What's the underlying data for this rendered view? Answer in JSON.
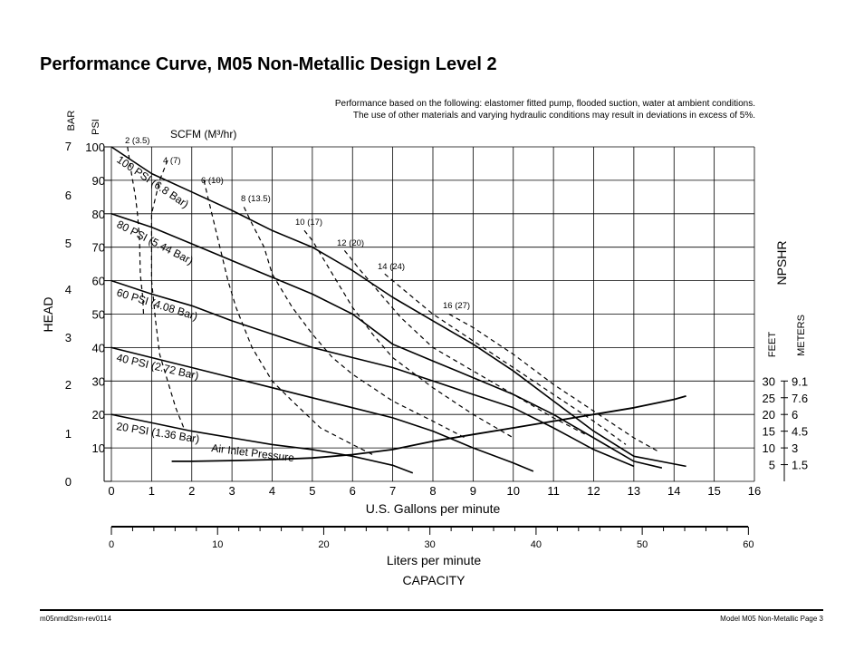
{
  "page": {
    "title": "Performance Curve, M05 Non-Metallic Design Level 2",
    "note_line1": "Performance based on the following: elastomer fitted pump, flooded suction, water at ambient conditions.",
    "note_line2": "The use of other materials and varying hydraulic conditions may result in deviations in excess of 5%.",
    "footer_left": "m05nmdl2sm-rev0114",
    "footer_right": "Model M05 Non-Metallic Page 3"
  },
  "chart_data": {
    "type": "line",
    "title": "",
    "x": {
      "label": "U.S. Gallons per minute",
      "range": [
        0,
        16
      ],
      "ticks": [
        0,
        1,
        2,
        3,
        4,
        5,
        6,
        7,
        8,
        9,
        10,
        11,
        12,
        13,
        14,
        15,
        16
      ]
    },
    "x2": {
      "label": "Liters per minute",
      "caption": "CAPACITY",
      "range": [
        0,
        60
      ],
      "ticks": [
        0,
        10,
        20,
        30,
        40,
        50,
        60
      ],
      "minor_step": 2
    },
    "y": {
      "label": "HEAD",
      "unit_label": "PSI",
      "range": [
        0,
        100
      ],
      "ticks": [
        0,
        10,
        20,
        30,
        40,
        50,
        60,
        70,
        80,
        90,
        100
      ]
    },
    "y_bar": {
      "unit_label": "BAR",
      "ticks": [
        0,
        1,
        2,
        3,
        4,
        5,
        6,
        7
      ]
    },
    "npshr": {
      "label": "NPSHR",
      "feet_label": "FEET",
      "meters_label": "METERS",
      "feet_ticks": [
        "5",
        "10",
        "15",
        "20",
        "25",
        "30"
      ],
      "meters_ticks": [
        "1.5",
        "3",
        "4.5",
        "6",
        "7.6",
        "9.1"
      ]
    },
    "grid": true,
    "air_inlet_label": "Air Inlet Pressure",
    "scfm_label": "SCFM (M³/hr)",
    "pressure_curves": [
      {
        "name": "100 PSI (6.8 Bar)",
        "points": [
          [
            0,
            100
          ],
          [
            1,
            92
          ],
          [
            2,
            86.5
          ],
          [
            3,
            81
          ],
          [
            4,
            75
          ],
          [
            5,
            70
          ],
          [
            6,
            63
          ],
          [
            7,
            55
          ],
          [
            8,
            48
          ],
          [
            9,
            41
          ],
          [
            10,
            33
          ],
          [
            11,
            24
          ],
          [
            12,
            15
          ],
          [
            13,
            7.5
          ],
          [
            14.3,
            4.5
          ]
        ]
      },
      {
        "name": "80 PSI (5.44 Bar)",
        "points": [
          [
            0,
            80
          ],
          [
            1,
            76
          ],
          [
            2,
            71
          ],
          [
            3,
            66
          ],
          [
            4,
            61
          ],
          [
            5,
            56
          ],
          [
            6,
            50
          ],
          [
            7,
            41
          ],
          [
            8,
            36
          ],
          [
            9,
            31
          ],
          [
            10,
            26
          ],
          [
            11,
            20
          ],
          [
            12,
            13
          ],
          [
            13,
            6
          ],
          [
            13.7,
            4
          ]
        ]
      },
      {
        "name": "60 PSI (4.08 Bar)",
        "points": [
          [
            0,
            60
          ],
          [
            1,
            56
          ],
          [
            2,
            52.5
          ],
          [
            3,
            48
          ],
          [
            4,
            44
          ],
          [
            5,
            40
          ],
          [
            6,
            37
          ],
          [
            7,
            34
          ],
          [
            8,
            30
          ],
          [
            9,
            26
          ],
          [
            10,
            22
          ],
          [
            11,
            16
          ],
          [
            12,
            9.5
          ],
          [
            13,
            4.5
          ]
        ]
      },
      {
        "name": "40 PSI (2.72 Bar)",
        "points": [
          [
            0,
            40
          ],
          [
            1,
            37
          ],
          [
            2,
            34
          ],
          [
            3,
            31
          ],
          [
            4,
            28
          ],
          [
            5,
            25
          ],
          [
            6,
            22
          ],
          [
            7,
            19
          ],
          [
            8,
            15
          ],
          [
            9,
            10
          ],
          [
            10,
            5.5
          ],
          [
            10.5,
            3
          ]
        ]
      },
      {
        "name": "20 PSI (1.36 Bar)",
        "points": [
          [
            0,
            20
          ],
          [
            1,
            17.5
          ],
          [
            2,
            15
          ],
          [
            3,
            13
          ],
          [
            4,
            11
          ],
          [
            5,
            9.5
          ],
          [
            6,
            7.5
          ],
          [
            7,
            4.8
          ],
          [
            7.5,
            2.5
          ]
        ]
      }
    ],
    "air_curves": [
      {
        "name": "2 (3.5)",
        "points": [
          [
            0.4,
            100
          ],
          [
            0.5,
            92
          ],
          [
            0.6,
            85
          ],
          [
            0.65,
            80
          ],
          [
            0.7,
            72
          ],
          [
            0.72,
            62
          ],
          [
            0.78,
            55
          ],
          [
            0.8,
            50
          ]
        ]
      },
      {
        "name": "4 (7)",
        "points": [
          [
            1.4,
            96
          ],
          [
            1.2,
            90
          ],
          [
            1.0,
            80
          ],
          [
            1.0,
            70
          ],
          [
            1.0,
            60
          ],
          [
            1.1,
            48
          ],
          [
            1.2,
            38
          ],
          [
            1.4,
            30
          ],
          [
            1.6,
            22
          ],
          [
            1.8,
            16
          ]
        ]
      },
      {
        "name": "6 (10)",
        "points": [
          [
            2.3,
            90
          ],
          [
            2.5,
            80
          ],
          [
            2.7,
            70
          ],
          [
            2.9,
            60
          ],
          [
            3.1,
            52
          ],
          [
            3.5,
            40
          ],
          [
            4.0,
            30
          ],
          [
            4.5,
            24
          ],
          [
            5.2,
            16
          ],
          [
            6.0,
            11
          ],
          [
            6.5,
            8
          ]
        ]
      },
      {
        "name": "8 (13.5)",
        "points": [
          [
            3.3,
            82
          ],
          [
            3.5,
            77
          ],
          [
            3.8,
            70
          ],
          [
            4.0,
            62
          ],
          [
            4.5,
            52
          ],
          [
            5.0,
            44
          ],
          [
            5.5,
            37
          ],
          [
            6.0,
            32
          ],
          [
            7.0,
            24
          ],
          [
            8.0,
            18
          ],
          [
            8.8,
            13
          ]
        ]
      },
      {
        "name": "10 (17)",
        "points": [
          [
            4.8,
            75
          ],
          [
            5.0,
            72
          ],
          [
            5.3,
            66
          ],
          [
            5.6,
            60
          ],
          [
            6.0,
            52
          ],
          [
            6.5,
            44
          ],
          [
            7.0,
            37
          ],
          [
            8.0,
            28
          ],
          [
            9.0,
            20
          ],
          [
            10.0,
            13
          ]
        ]
      },
      {
        "name": "12 (20)",
        "points": [
          [
            5.8,
            69
          ],
          [
            6.2,
            63
          ],
          [
            6.7,
            56
          ],
          [
            7.2,
            49
          ],
          [
            8.0,
            40
          ],
          [
            9.0,
            33
          ],
          [
            10.0,
            26
          ],
          [
            11.0,
            19
          ],
          [
            11.8,
            14
          ]
        ]
      },
      {
        "name": "14 (24)",
        "points": [
          [
            6.8,
            62
          ],
          [
            7.2,
            58
          ],
          [
            8.0,
            50
          ],
          [
            9.0,
            42
          ],
          [
            10.0,
            34
          ],
          [
            11.0,
            26
          ],
          [
            12.0,
            18
          ],
          [
            12.8,
            11
          ]
        ]
      },
      {
        "name": "16 (27)",
        "points": [
          [
            8.4,
            50
          ],
          [
            9.0,
            46
          ],
          [
            10.0,
            38
          ],
          [
            11.0,
            29
          ],
          [
            12.0,
            21
          ],
          [
            13.0,
            13
          ],
          [
            13.6,
            9
          ]
        ]
      }
    ],
    "npshr_curve": {
      "points": [
        [
          1.5,
          6
        ],
        [
          2,
          6
        ],
        [
          3,
          6.2
        ],
        [
          4,
          6.5
        ],
        [
          5,
          7
        ],
        [
          6,
          8
        ],
        [
          7,
          9.5
        ],
        [
          8,
          12
        ],
        [
          9,
          14
        ],
        [
          10,
          16
        ],
        [
          11,
          18
        ],
        [
          12,
          20
        ],
        [
          13,
          22
        ],
        [
          14,
          24.5
        ],
        [
          14.3,
          25.5
        ]
      ]
    }
  }
}
